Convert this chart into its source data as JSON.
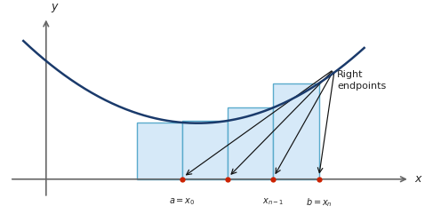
{
  "figsize": [
    4.87,
    2.41
  ],
  "dpi": 100,
  "curve_color": "#1a3a6b",
  "rect_fill_color": "#d6e9f8",
  "rect_edge_color": "#5aabcc",
  "axis_color": "#666666",
  "dot_color": "#cc2200",
  "arrow_color": "#111111",
  "text_color": "#222222",
  "subintervals": [
    2.0,
    3.0,
    4.0,
    5.0,
    6.0
  ],
  "curve_a": 0.18,
  "curve_b": -1.2,
  "curve_c": 3.8,
  "label_a_x0": "$a = x_0$",
  "label_xn1": "$x_{n-1}$",
  "label_b_xn": "$b = x_n$",
  "label_right": "Right\nendpoints",
  "label_x": "$x$",
  "label_y": "$y$",
  "xlim": [
    -1.0,
    8.5
  ],
  "ylim": [
    -1.1,
    5.5
  ],
  "yaxis_x": 0.0,
  "xaxis_y": 0.0
}
